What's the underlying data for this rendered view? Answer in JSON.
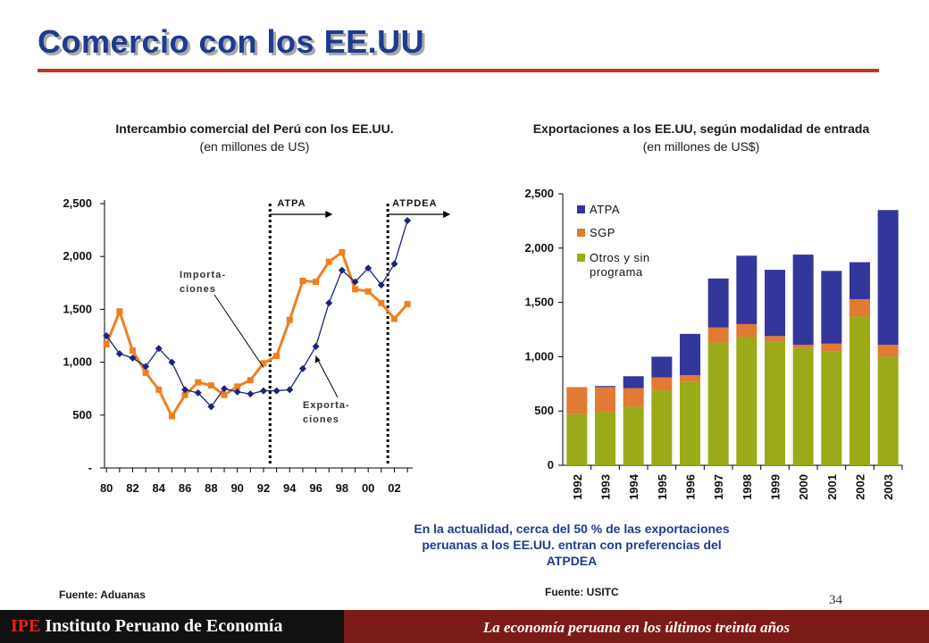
{
  "slide": {
    "title": "Comercio con los EE.UU",
    "page_number": "34",
    "note": "En la actualidad, cerca del 50 % de las exportaciones peruanas a los  EE.UU. entran con preferencias del ATPDEA",
    "footer_brand_abbr": "IPE",
    "footer_brand_name": "Instituto Peruano de Economía",
    "footer_subtitle": "La economía peruana en los últimos treinta años",
    "colors": {
      "title": "#1f3b8f",
      "rule": "#c0391b",
      "footer": "#7a1b17",
      "footer_left": "#111111"
    }
  },
  "left_chart": {
    "title": "Intercambio comercial del Perú con los EE.UU.",
    "subtitle": "(en millones de US)",
    "source": "Fuente: Aduanas"
  },
  "right_chart": {
    "title": "Exportaciones a los EE.UU, según modalidad de entrada",
    "subtitle": "(en millones de US$)",
    "source": "Fuente:  USITC"
  },
  "chart_data": [
    {
      "type": "line",
      "title": "Intercambio comercial del Perú con los EE.UU.",
      "subtitle": "(en millones de US)",
      "x": [
        1980,
        1981,
        1982,
        1983,
        1984,
        1985,
        1986,
        1987,
        1988,
        1989,
        1990,
        1991,
        1992,
        1993,
        1994,
        1995,
        1996,
        1997,
        1998,
        1999,
        2000,
        2001,
        2002,
        2003
      ],
      "x_tick_labels": [
        "80",
        "82",
        "84",
        "86",
        "88",
        "90",
        "92",
        "94",
        "96",
        "98",
        "00",
        "02"
      ],
      "y_tick_labels": [
        "-",
        "500",
        "1,000",
        "1,500",
        "2,000",
        "2,500"
      ],
      "ylim": [
        0,
        2500
      ],
      "series": [
        {
          "name": "Importa-ciones",
          "label_lines": [
            "Importa-",
            "ciones"
          ],
          "color": "#f07f1e",
          "marker": "square",
          "values": [
            1170,
            1480,
            1110,
            900,
            740,
            490,
            690,
            810,
            780,
            690,
            770,
            830,
            990,
            1060,
            1400,
            1770,
            1760,
            1950,
            2040,
            1690,
            1670,
            1560,
            1410,
            1550
          ]
        },
        {
          "name": "Exporta-ciones",
          "label_lines": [
            "Exporta-",
            "ciones"
          ],
          "color": "#1a237e",
          "marker": "diamond",
          "values": [
            1250,
            1080,
            1040,
            960,
            1130,
            1000,
            740,
            710,
            580,
            750,
            720,
            700,
            730,
            730,
            740,
            940,
            1150,
            1560,
            1870,
            1760,
            1890,
            1730,
            1930,
            2340
          ]
        }
      ],
      "annotations": [
        {
          "text": "ATPA",
          "x": 1992.5
        },
        {
          "text": "ATPDEA",
          "x": 2001.5
        }
      ],
      "grid": false
    },
    {
      "type": "bar",
      "stacked": true,
      "title": "Exportaciones a los EE.UU, según modalidad de entrada",
      "subtitle": "(en millones de US$)",
      "categories": [
        "1992",
        "1993",
        "1994",
        "1995",
        "1996",
        "1997",
        "1998",
        "1999",
        "2000",
        "2001",
        "2002",
        "2003"
      ],
      "y_tick_labels": [
        "0",
        "500",
        "1,000",
        "1,500",
        "2,000",
        "2,500"
      ],
      "ylim": [
        0,
        2500
      ],
      "legend_position": "top-left",
      "series": [
        {
          "name": "Otros y sin programa",
          "label_lines": [
            "Otros y sin",
            "programa"
          ],
          "color": "#9aaa18",
          "values": [
            470,
            490,
            540,
            690,
            770,
            1130,
            1180,
            1140,
            1080,
            1050,
            1370,
            1000
          ]
        },
        {
          "name": "SGP",
          "label_lines": [
            "SGP"
          ],
          "color": "#e07a34",
          "values": [
            250,
            230,
            170,
            120,
            60,
            140,
            120,
            50,
            30,
            70,
            160,
            110
          ]
        },
        {
          "name": "ATPA",
          "label_lines": [
            "ATPA"
          ],
          "color": "#33369a",
          "values": [
            0,
            10,
            110,
            190,
            380,
            450,
            630,
            610,
            830,
            670,
            340,
            1240
          ]
        }
      ],
      "grid": false
    }
  ]
}
